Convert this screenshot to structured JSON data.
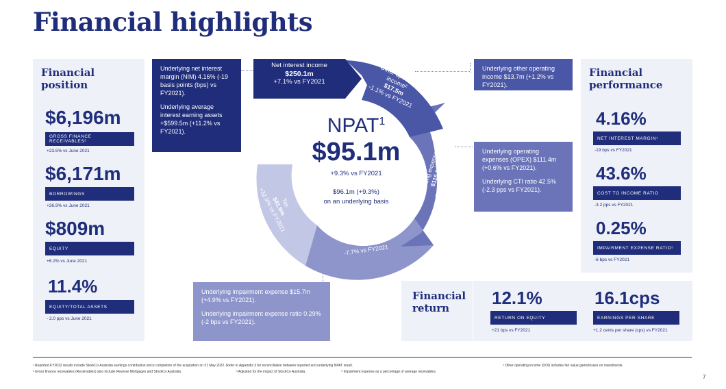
{
  "title": "Financial highlights",
  "position": {
    "heading": "Financial position",
    "metrics": [
      {
        "value": "$6,196m",
        "label": "GROSS FINANCE RECEIVABLES²",
        "note": "+23.5% vs June 2021"
      },
      {
        "value": "$6,171m",
        "label": "BORROWINGS",
        "note": "+26.9% vs June 2021"
      },
      {
        "value": "$809m",
        "label": "EQUITY",
        "note": "+6.2% vs June 2021"
      },
      {
        "value": "11.4%",
        "label": "EQUITY/TOTAL ASSETS",
        "note": "- 2.0 pps vs June 2021"
      }
    ]
  },
  "performance": {
    "heading": "Financial performance",
    "metrics": [
      {
        "value": "4.16%",
        "label": "NET INTEREST MARGIN⁴",
        "note": "-19 bps vs FY2021"
      },
      {
        "value": "43.6%",
        "label": "COST TO INCOME RATIO",
        "note": "-3.2 pps vs FY2021"
      },
      {
        "value": "0.25%",
        "label": "IMPAIRMENT EXPENSE RATIO⁵",
        "note": "-6 bps vs FY2021"
      }
    ]
  },
  "return": {
    "heading": "Financial return",
    "metrics": [
      {
        "value": "12.1%",
        "label": "RETURN ON EQUITY",
        "note": "+21 bps vs FY2021"
      },
      {
        "value": "16.1cps",
        "label": "EARNINGS PER SHARE",
        "note": "+1.2 cents per share (cps) vs FY2021"
      }
    ]
  },
  "boxes": {
    "nim": {
      "p1": "Underlying net interest margin (NIM) 4.16% (-19 basis points (bps) vs FY2021).",
      "p2": "Underlying average interest earning assets +$599.5m (+11.2% vs FY2021)."
    },
    "ooi": {
      "p1": "Underlying other operating income $13.7m (+1.2% vs FY2021)."
    },
    "opex": {
      "p1": "Underlying operating expenses (OPEX) $111.4m (+0.6% vs FY2021).",
      "p2": "Underlying CTI ratio 42.5% (-2.3 pps vs FY2021)."
    },
    "impair": {
      "p1": "Underlying impairment expense $15.7m (+4.9% vs FY2021).",
      "p2": "Underlying impairment expense ratio 0.29% (-2 bps vs FY2021)."
    }
  },
  "wheel": {
    "nii": {
      "title": "Net interest income",
      "value": "$250.1m",
      "change": "+7.1% vs FY2021"
    },
    "ooi": {
      "title": "Other operating income²",
      "value": "$17.5m",
      "change": "-1.1% vs FY2021"
    },
    "opex": {
      "title": "Operating expenses",
      "value": "$116.8m",
      "change": "-0.8% vs FY2021"
    },
    "impair": {
      "title": "Impairment expense",
      "value": "$13.8m",
      "change": "-7.7% vs FY2021"
    },
    "tax": {
      "title": "Tax",
      "value": "$41.9m",
      "change": "+32.9% vs FY2021"
    },
    "npat": {
      "label": "NPAT",
      "sup": "1",
      "value": "$95.1m",
      "change": "+9.3% vs FY2021",
      "underlying1": "$96.1m (+9.3%)",
      "underlying2": "on an underlying basis"
    }
  },
  "footnotes": {
    "f1": "¹ Reported FY2022 results include StockCo Australia earnings contribution since completion of the acquisition on 31 May 2022. Refer to Appendix 3 for reconciliation between reported and underlying NPAT result.",
    "f2": "² Gross finance receivables (Receivables) also include Reverse Mortgages and StockCo Australia.",
    "f3": "³ Adjusted for the impact of StockCo Australia.",
    "f4": "⁵ Impairment expense as a percentage of average receivables.",
    "f5": "² Other operating income (OOI) includes fair value gains/losses on investments."
  },
  "page_number": "7",
  "colors": {
    "navy": "#1f2d7b",
    "panel": "#eef1f8",
    "seg_ooi": "#4a56a6",
    "seg_opex": "#6b74b8",
    "seg_impair": "#8e95cb",
    "seg_tax": "#c3c7e6"
  }
}
